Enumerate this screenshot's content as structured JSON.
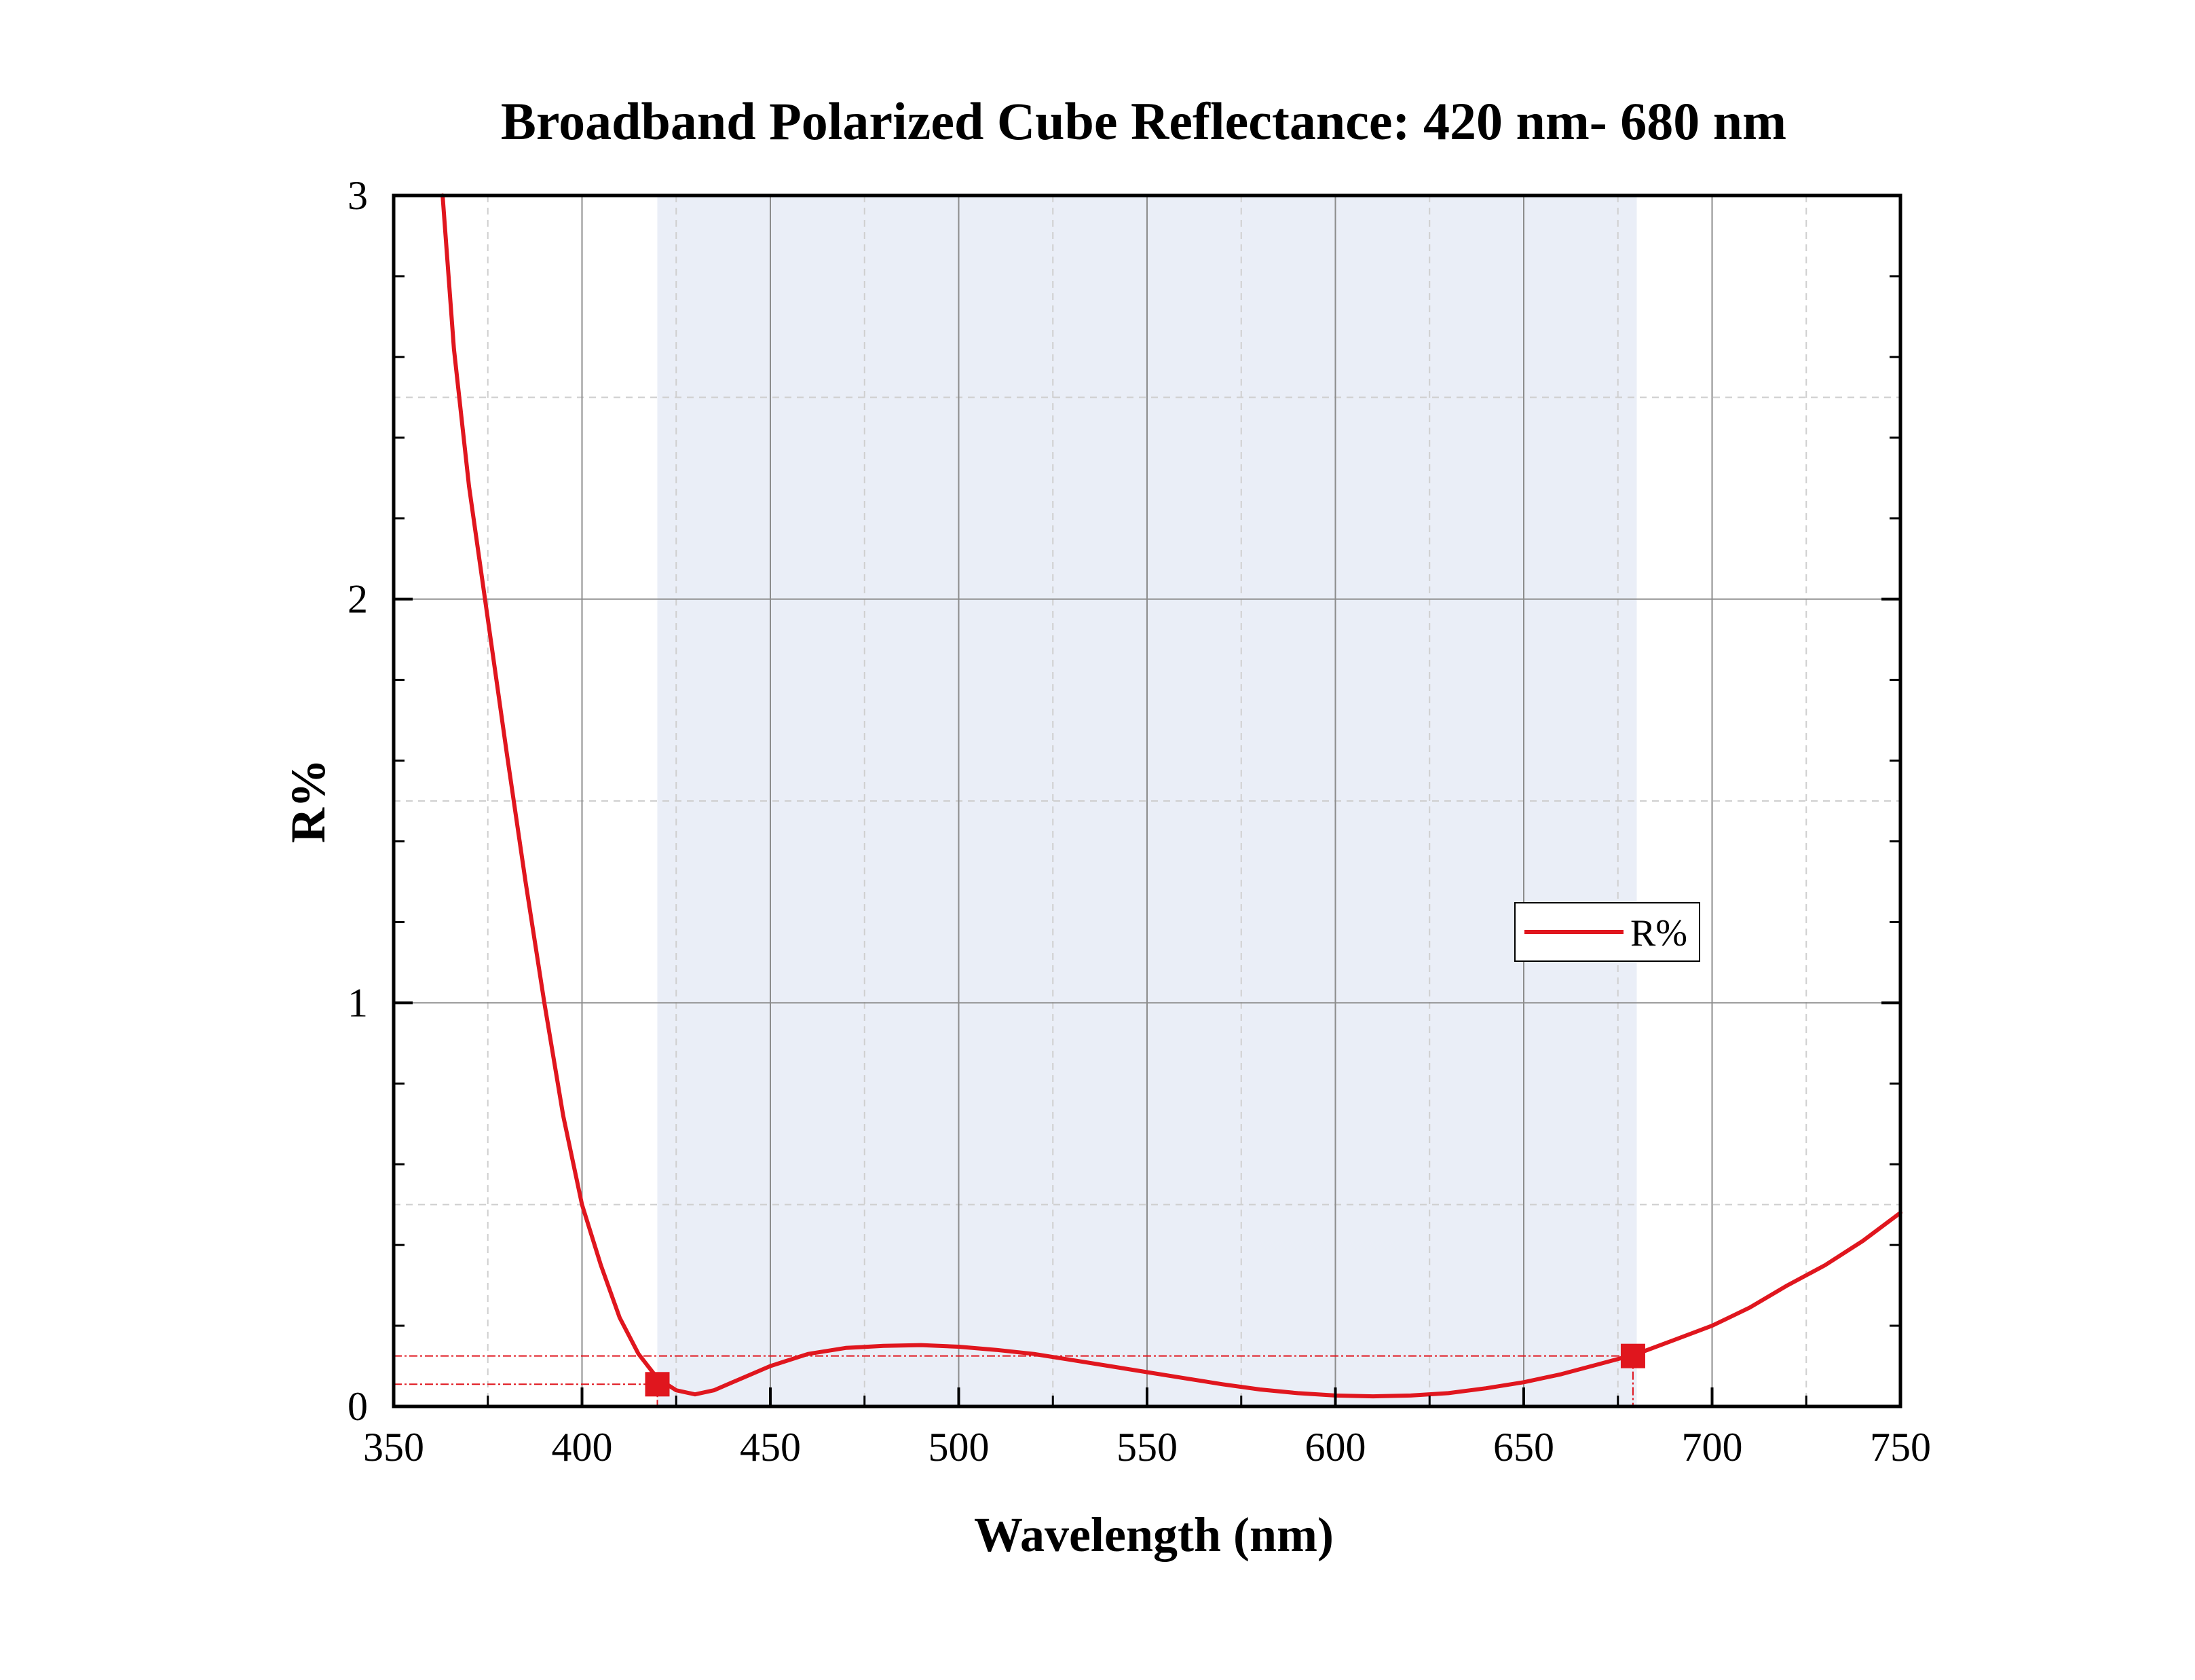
{
  "chart_data": {
    "type": "line",
    "title": "Broadband Polarized Cube Reflectance: 420 nm- 680 nm",
    "xlabel": "Wavelength (nm)",
    "ylabel": "R%",
    "xlim": [
      350,
      750
    ],
    "ylim": [
      0,
      3
    ],
    "x_ticks": [
      350,
      400,
      450,
      500,
      550,
      600,
      650,
      700,
      750
    ],
    "y_ticks": [
      0,
      1,
      2,
      3
    ],
    "grid": true,
    "legend_position": "center-right",
    "highlight_band": [
      420,
      680
    ],
    "series": [
      {
        "name": "R%",
        "color": "#e0161e",
        "points": [
          [
            363,
            3.0
          ],
          [
            366,
            2.62
          ],
          [
            370,
            2.28
          ],
          [
            375,
            1.95
          ],
          [
            380,
            1.62
          ],
          [
            385,
            1.3
          ],
          [
            390,
            1.0
          ],
          [
            395,
            0.72
          ],
          [
            400,
            0.5
          ],
          [
            405,
            0.35
          ],
          [
            410,
            0.22
          ],
          [
            415,
            0.13
          ],
          [
            420,
            0.07
          ],
          [
            425,
            0.04
          ],
          [
            430,
            0.03
          ],
          [
            435,
            0.04
          ],
          [
            440,
            0.06
          ],
          [
            450,
            0.1
          ],
          [
            460,
            0.13
          ],
          [
            470,
            0.145
          ],
          [
            480,
            0.15
          ],
          [
            490,
            0.152
          ],
          [
            500,
            0.148
          ],
          [
            510,
            0.14
          ],
          [
            520,
            0.13
          ],
          [
            530,
            0.115
          ],
          [
            540,
            0.1
          ],
          [
            550,
            0.085
          ],
          [
            560,
            0.07
          ],
          [
            570,
            0.055
          ],
          [
            580,
            0.042
          ],
          [
            590,
            0.033
          ],
          [
            600,
            0.027
          ],
          [
            610,
            0.025
          ],
          [
            620,
            0.027
          ],
          [
            630,
            0.033
          ],
          [
            640,
            0.045
          ],
          [
            650,
            0.06
          ],
          [
            660,
            0.08
          ],
          [
            670,
            0.105
          ],
          [
            680,
            0.13
          ],
          [
            690,
            0.165
          ],
          [
            700,
            0.2
          ],
          [
            710,
            0.245
          ],
          [
            720,
            0.3
          ],
          [
            730,
            0.35
          ],
          [
            740,
            0.41
          ],
          [
            750,
            0.48
          ]
        ]
      }
    ],
    "markers": [
      {
        "x": 420,
        "y": 0.055,
        "color": "#e0161e"
      },
      {
        "x": 679,
        "y": 0.125,
        "color": "#e0161e"
      }
    ]
  }
}
